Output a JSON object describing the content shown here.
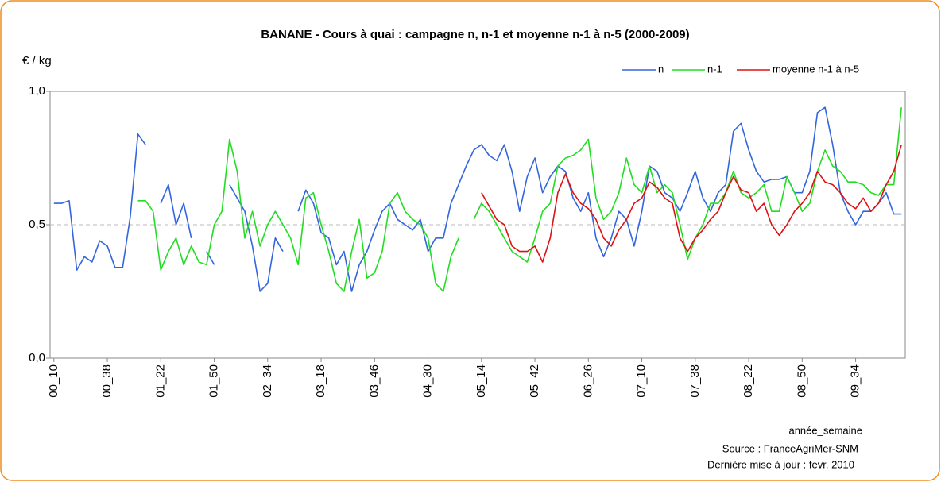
{
  "chart_data": {
    "type": "line",
    "title": "BANANE - Cours à quai : campagne n, n-1 et moyenne n-1 à n-5 (2000-2009)",
    "y_label": "€ / kg",
    "x_label": "année_semaine",
    "source": "Source : FranceAgriMer-SNM",
    "update": "Dernière mise à jour : fevr. 2010",
    "legend": "top-right",
    "grid": true,
    "ylim": [
      0,
      1
    ],
    "yticks": [
      {
        "value": 0,
        "label": "0,0"
      },
      {
        "value": 0.5,
        "label": "0,5"
      },
      {
        "value": 1,
        "label": "1,0"
      }
    ],
    "categories": [
      "00_10",
      null,
      null,
      null,
      null,
      null,
      null,
      "00_38",
      null,
      null,
      null,
      null,
      null,
      null,
      "01_22",
      null,
      null,
      null,
      null,
      null,
      null,
      "01_50",
      null,
      null,
      null,
      null,
      null,
      null,
      "02_34",
      null,
      null,
      null,
      null,
      null,
      null,
      "03_18",
      null,
      null,
      null,
      null,
      null,
      null,
      "03_46",
      null,
      null,
      null,
      null,
      null,
      null,
      "04_30",
      null,
      null,
      null,
      null,
      null,
      null,
      "05_14",
      null,
      null,
      null,
      null,
      null,
      null,
      "05_42",
      null,
      null,
      null,
      null,
      null,
      null,
      "06_26",
      null,
      null,
      null,
      null,
      null,
      null,
      "07_10",
      null,
      null,
      null,
      null,
      null,
      null,
      "07_38",
      null,
      null,
      null,
      null,
      null,
      null,
      "08_22",
      null,
      null,
      null,
      null,
      null,
      null,
      "08_50",
      null,
      null,
      null,
      null,
      null,
      null,
      "09_34",
      null,
      null,
      null,
      null,
      null,
      null
    ],
    "series": [
      {
        "name": "n",
        "color": "#3366dd",
        "values": [
          0.58,
          0.58,
          0.59,
          0.33,
          0.38,
          0.36,
          0.44,
          0.42,
          0.34,
          0.34,
          0.53,
          0.84,
          0.8,
          null,
          0.58,
          0.65,
          0.5,
          0.58,
          0.45,
          null,
          0.4,
          0.35,
          null,
          0.65,
          0.6,
          0.55,
          0.42,
          0.25,
          0.28,
          0.45,
          0.4,
          null,
          0.55,
          0.63,
          0.58,
          0.47,
          0.45,
          0.35,
          0.4,
          0.25,
          0.35,
          0.4,
          0.48,
          0.55,
          0.58,
          0.52,
          0.5,
          0.48,
          0.52,
          0.4,
          0.45,
          0.45,
          0.58,
          0.65,
          0.72,
          0.78,
          0.8,
          0.76,
          0.74,
          0.8,
          0.7,
          0.55,
          0.68,
          0.75,
          0.62,
          0.68,
          0.72,
          0.7,
          0.6,
          0.55,
          0.62,
          0.45,
          0.38,
          0.45,
          0.55,
          0.52,
          0.42,
          0.55,
          0.72,
          0.7,
          0.62,
          0.6,
          0.55,
          0.62,
          0.7,
          0.6,
          0.55,
          0.62,
          0.65,
          0.85,
          0.88,
          0.78,
          0.7,
          0.66,
          0.67,
          0.67,
          0.68,
          0.62,
          0.62,
          0.7,
          0.92,
          0.94,
          0.8,
          0.62,
          0.55,
          0.5,
          0.55,
          0.55,
          0.58,
          0.62,
          0.54,
          0.54
        ]
      },
      {
        "name": "n-1",
        "color": "#22dd22",
        "values": [
          null,
          null,
          null,
          null,
          null,
          null,
          null,
          null,
          null,
          null,
          null,
          0.59,
          0.59,
          0.55,
          0.33,
          0.4,
          0.45,
          0.35,
          0.42,
          0.36,
          0.35,
          0.5,
          0.55,
          0.82,
          0.7,
          0.45,
          0.55,
          0.42,
          0.5,
          0.55,
          0.5,
          0.45,
          0.35,
          0.6,
          0.62,
          0.5,
          0.4,
          0.28,
          0.25,
          0.4,
          0.52,
          0.3,
          0.32,
          0.4,
          0.58,
          0.62,
          0.55,
          0.52,
          0.5,
          0.45,
          0.28,
          0.25,
          0.38,
          0.45,
          null,
          0.52,
          0.58,
          0.55,
          0.5,
          0.45,
          0.4,
          0.38,
          0.36,
          0.45,
          0.55,
          0.58,
          0.72,
          0.75,
          0.76,
          0.78,
          0.82,
          0.6,
          0.52,
          0.55,
          0.62,
          0.75,
          0.65,
          0.62,
          0.72,
          0.62,
          0.65,
          0.62,
          0.5,
          0.37,
          0.45,
          0.5,
          0.58,
          0.58,
          0.62,
          0.7,
          0.62,
          0.6,
          0.62,
          0.65,
          0.55,
          0.55,
          0.68,
          0.62,
          0.55,
          0.58,
          0.7,
          0.78,
          0.72,
          0.7,
          0.66,
          0.66,
          0.65,
          0.62,
          0.61,
          0.65,
          0.65,
          0.94
        ]
      },
      {
        "name": "moyenne n-1 à n-5",
        "color": "#dd1111",
        "values": [
          null,
          null,
          null,
          null,
          null,
          null,
          null,
          null,
          null,
          null,
          null,
          null,
          null,
          null,
          null,
          null,
          null,
          null,
          null,
          null,
          null,
          null,
          null,
          null,
          null,
          null,
          null,
          null,
          null,
          null,
          null,
          null,
          null,
          null,
          null,
          null,
          null,
          null,
          null,
          null,
          null,
          null,
          null,
          null,
          null,
          null,
          null,
          null,
          null,
          null,
          null,
          null,
          null,
          null,
          null,
          null,
          0.62,
          0.57,
          0.52,
          0.5,
          0.42,
          0.4,
          0.4,
          0.42,
          0.36,
          0.45,
          0.62,
          0.69,
          0.62,
          0.58,
          0.56,
          0.52,
          0.45,
          0.42,
          0.48,
          0.52,
          0.58,
          0.6,
          0.66,
          0.64,
          0.6,
          0.58,
          0.45,
          0.4,
          0.45,
          0.48,
          0.52,
          0.55,
          0.62,
          0.68,
          0.63,
          0.62,
          0.55,
          0.58,
          0.5,
          0.46,
          0.5,
          0.55,
          0.58,
          0.62,
          0.7,
          0.66,
          0.65,
          0.62,
          0.58,
          0.56,
          0.6,
          0.55,
          0.58,
          0.65,
          0.7,
          0.8
        ]
      }
    ]
  }
}
